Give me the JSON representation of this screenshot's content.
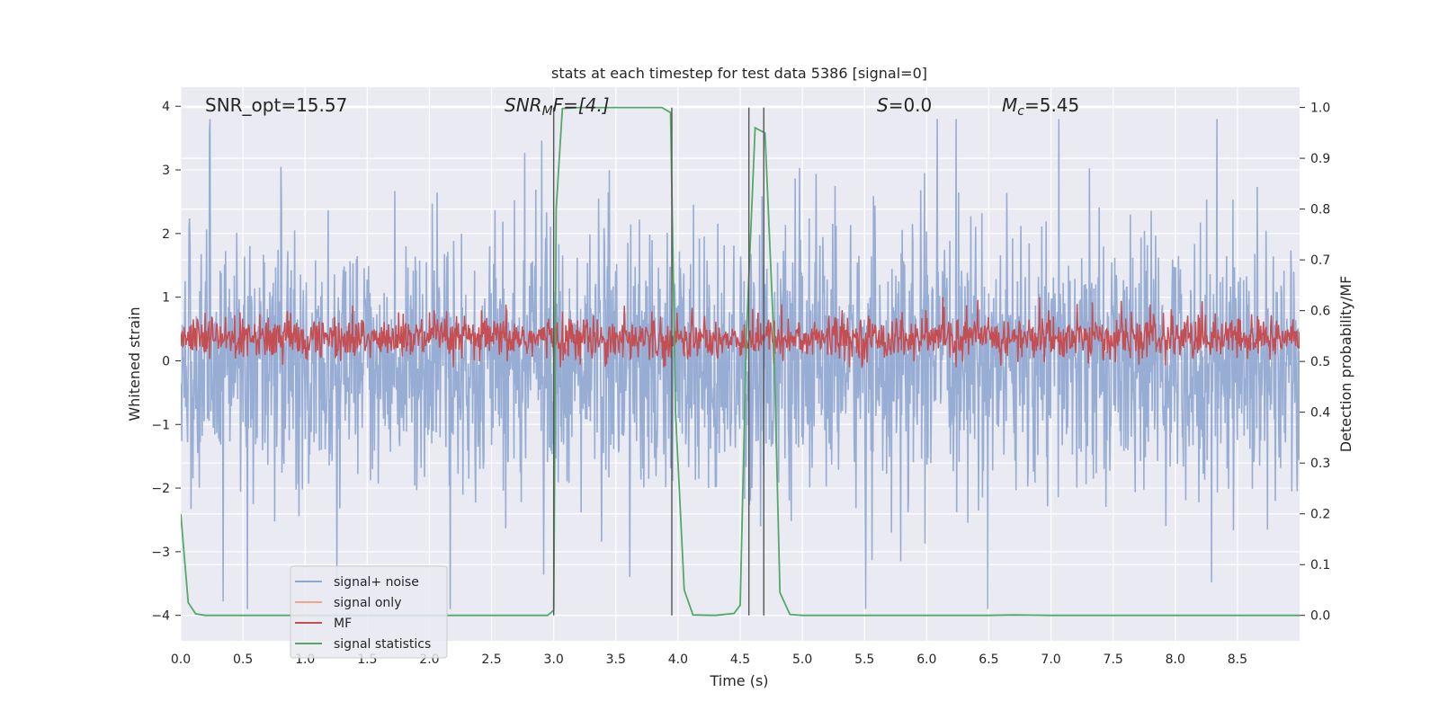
{
  "chart_data": {
    "type": "line",
    "title": "stats at each timestep for test data 5386 [signal=0]",
    "xlabel": "Time (s)",
    "ylabel_left": "Whitened strain",
    "ylabel_right": "Detection probability/MF",
    "xlim": [
      0.0,
      9.0
    ],
    "ylim_left": [
      -4.4,
      4.3
    ],
    "ylim_right": [
      -0.05,
      1.04
    ],
    "x_ticks": [
      "0.0",
      "0.5",
      "1.0",
      "1.5",
      "2.0",
      "2.5",
      "3.0",
      "3.5",
      "4.0",
      "4.5",
      "5.0",
      "5.5",
      "6.0",
      "6.5",
      "7.0",
      "7.5",
      "8.0",
      "8.5"
    ],
    "y_ticks_left": [
      "4",
      "3",
      "2",
      "1",
      "0",
      "−1",
      "−2",
      "−3",
      "−4"
    ],
    "y_ticks_right": [
      "1.0",
      "0.9",
      "0.8",
      "0.7",
      "0.6",
      "0.5",
      "0.4",
      "0.3",
      "0.2",
      "0.1",
      "0.0"
    ],
    "annotations": {
      "snr_opt": "SNR_opt=15.57",
      "snr_mf_main": "SNR",
      "snr_mf_sub": "M",
      "snr_mf_rest": "F=[4.]",
      "s_main": "S",
      "s_rest": "=0.0",
      "mc_main": "M",
      "mc_sub": "c",
      "mc_rest": "=5.45"
    },
    "legend": {
      "position": "lower left",
      "entries": [
        {
          "label": "signal+ noise",
          "color": "#8fa6d0"
        },
        {
          "label": "signal only",
          "color": "#f2a48a"
        },
        {
          "label": "MF",
          "color": "#c44e52"
        },
        {
          "label": "signal statistics",
          "color": "#55a868"
        }
      ]
    },
    "vertical_markers": [
      3.0,
      3.95,
      4.57,
      4.69
    ],
    "series": [
      {
        "name": "signal+ noise",
        "color": "#8fa6d0",
        "description": "whitened noise, sample rate 256 Hz",
        "amplitude_envelope": [
          -3.9,
          3.8
        ]
      },
      {
        "name": "signal only",
        "color": "#f2a48a",
        "values": []
      },
      {
        "name": "MF",
        "color": "#c44e52",
        "center": 0.35,
        "amplitude_envelope": [
          -0.1,
          1.0
        ]
      },
      {
        "name": "signal statistics",
        "color": "#55a868",
        "axis": "right",
        "x": [
          0.0,
          0.02,
          0.06,
          0.12,
          0.2,
          0.5,
          1.0,
          1.5,
          2.0,
          2.5,
          2.95,
          3.0,
          3.02,
          3.07,
          3.2,
          3.5,
          3.75,
          3.87,
          3.94,
          3.98,
          4.05,
          4.12,
          4.3,
          4.45,
          4.5,
          4.55,
          4.62,
          4.7,
          4.77,
          4.82,
          4.9,
          5.0,
          5.5,
          6.0,
          6.5,
          6.7,
          7.0,
          7.5,
          8.0,
          8.5,
          9.0
        ],
        "y": [
          0.2,
          0.14,
          0.025,
          0.003,
          0.0,
          0.0,
          0.0,
          0.0,
          0.0,
          0.0,
          0.0,
          0.01,
          0.8,
          0.998,
          1.0,
          1.0,
          1.0,
          1.0,
          0.99,
          0.4,
          0.05,
          0.001,
          0.0,
          0.004,
          0.02,
          0.55,
          0.96,
          0.95,
          0.55,
          0.045,
          0.002,
          0.0,
          0.0,
          0.0,
          0.0,
          0.001,
          0.0,
          0.0,
          0.0,
          0.0,
          0.0
        ]
      }
    ],
    "grid": true
  }
}
